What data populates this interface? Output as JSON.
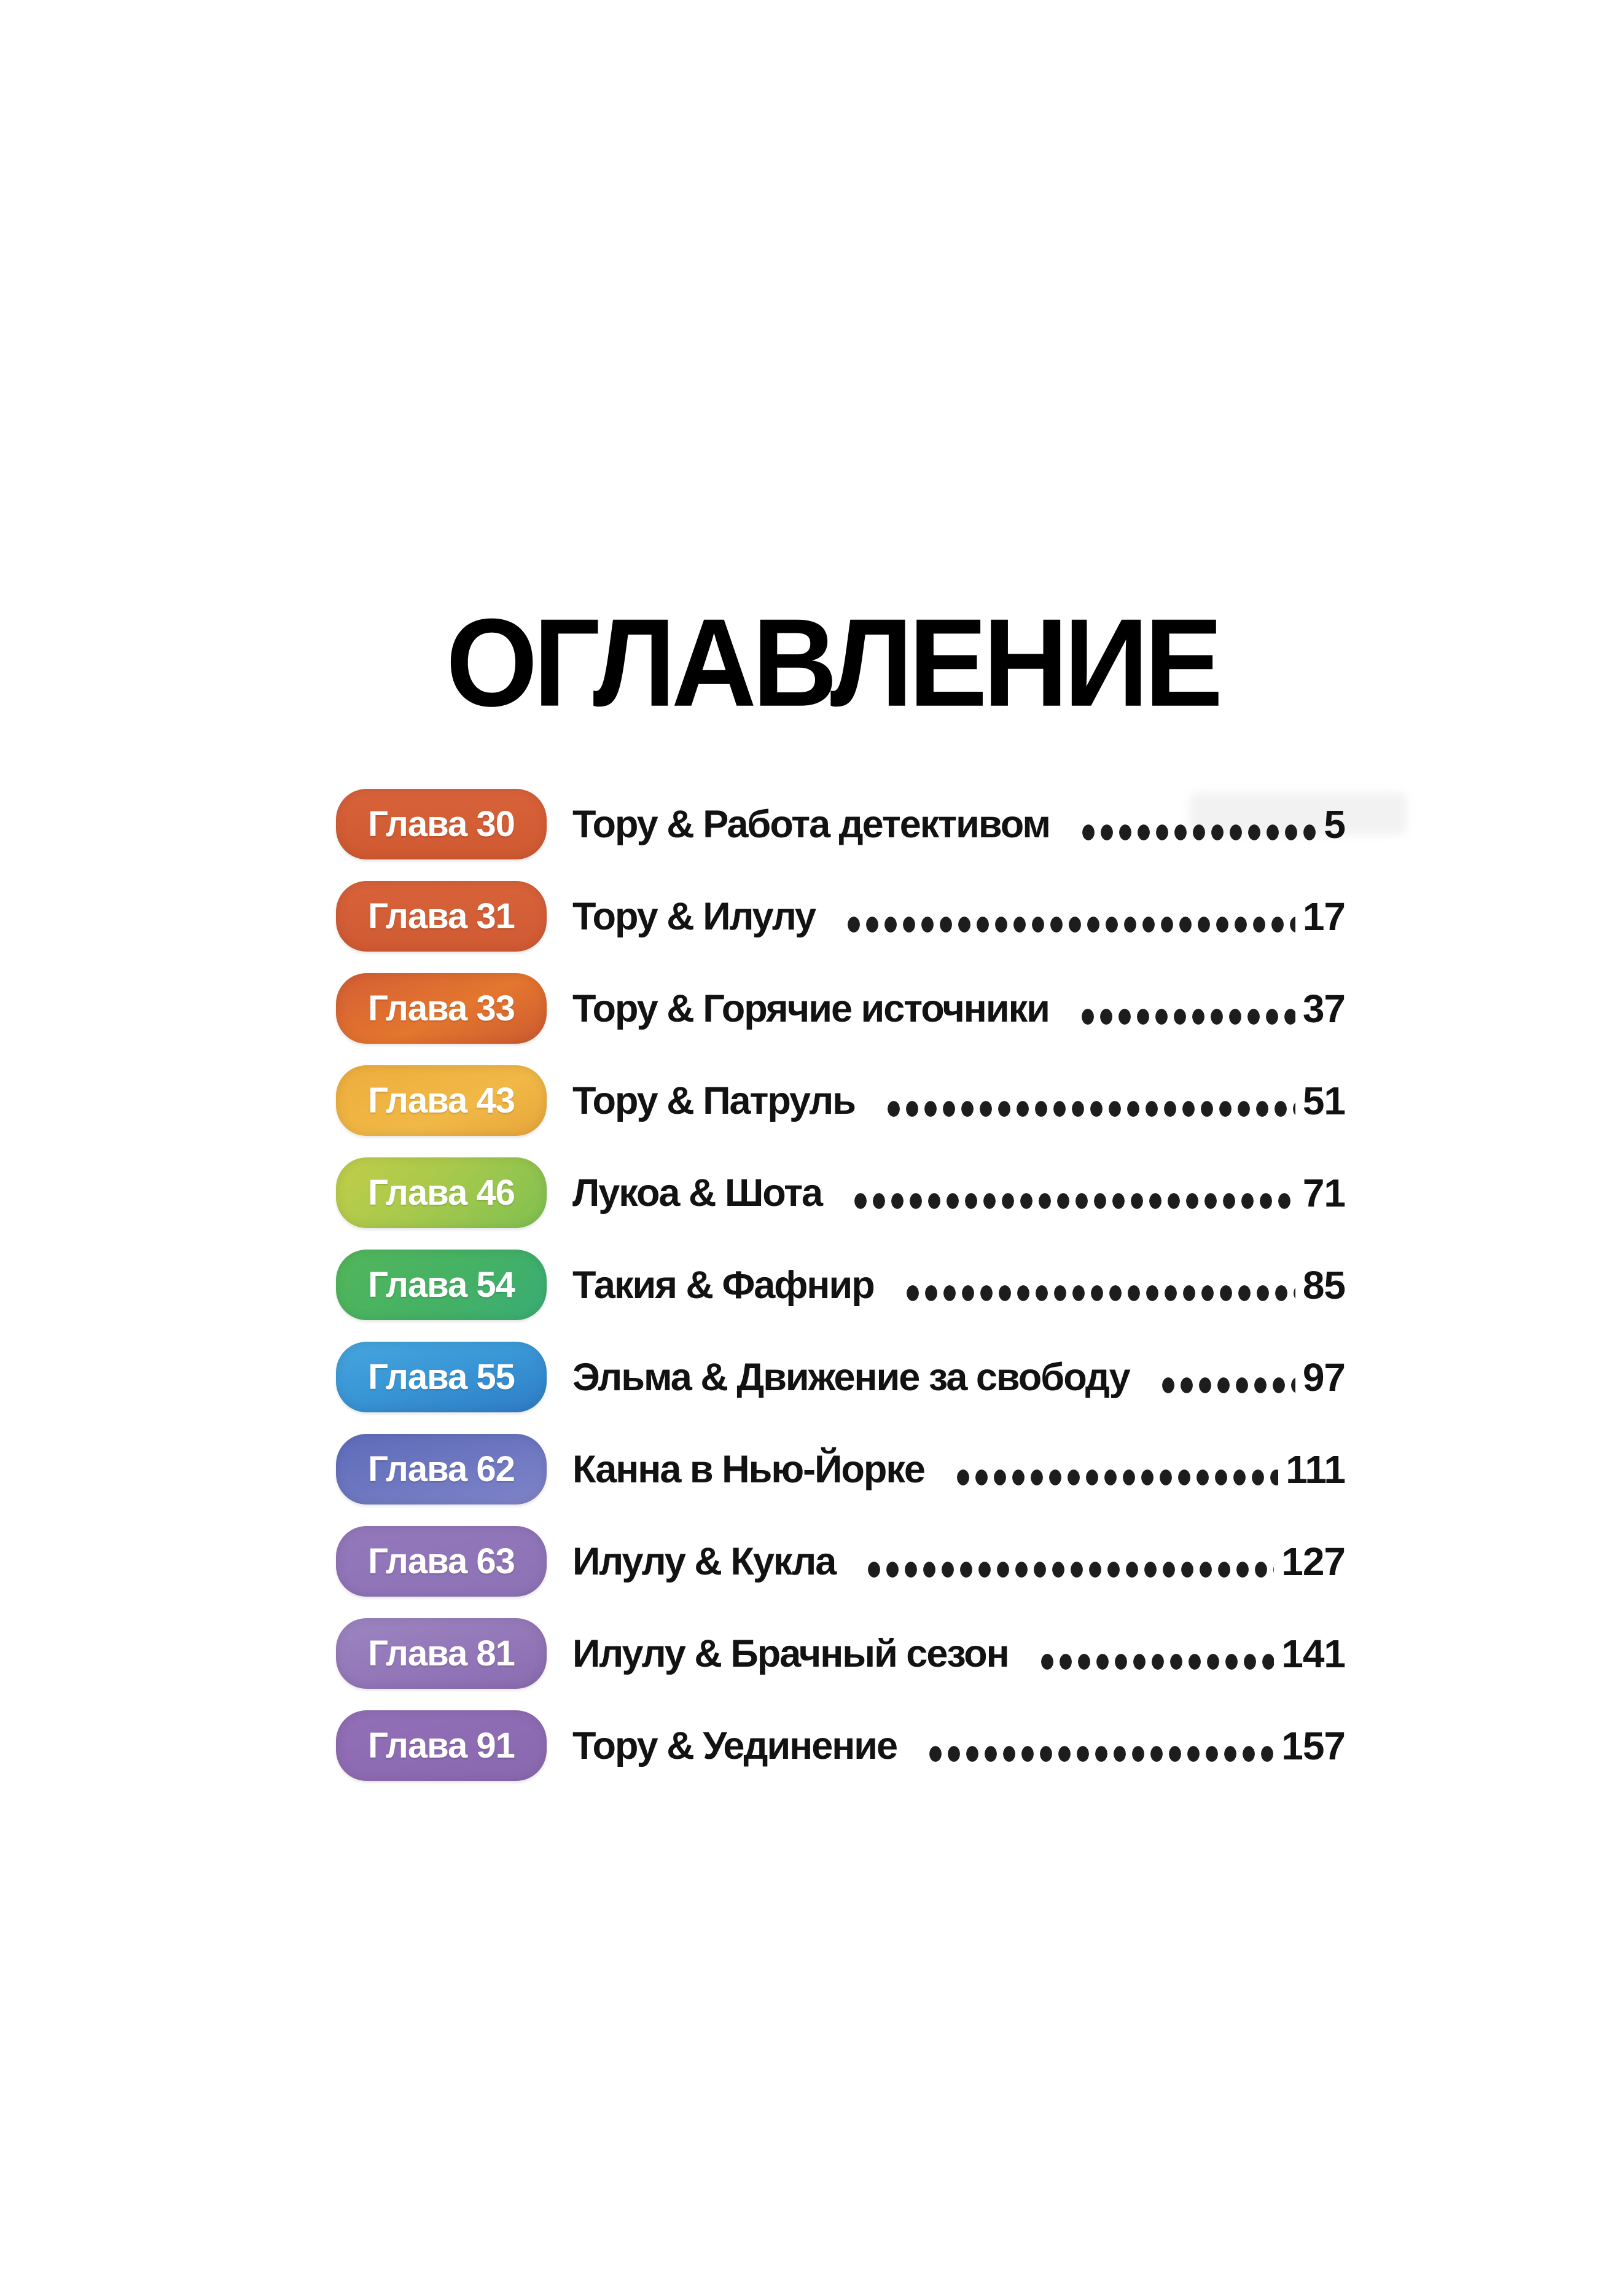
{
  "page": {
    "title": "ОГЛАВЛЕНИЕ",
    "background": "#ffffff",
    "text_color": "#121212"
  },
  "toc": {
    "entries": [
      {
        "chapter": "Глава 30",
        "title": "Тору & Работа детективом",
        "page": "5",
        "pill_style": "background:linear-gradient(180deg,#d8623a 0%,#cf5931 100%)"
      },
      {
        "chapter": "Глава 31",
        "title": "Тору & Илулу",
        "page": "17",
        "pill_style": "background:linear-gradient(180deg,#d8623a 0%,#d05a32 100%)"
      },
      {
        "chapter": "Глава 33",
        "title": "Тору & Горячие источники",
        "page": "37",
        "pill_style": "background:linear-gradient(155deg,#d45e34 0%,#e4762e 55%,#cd5a30 100%)"
      },
      {
        "chapter": "Глава 43",
        "title": "Тору & Патруль",
        "page": "51",
        "pill_style": "background:linear-gradient(155deg,#eeae3c 0%,#f0b846 60%,#e8a53b 100%)"
      },
      {
        "chapter": "Глава 46",
        "title": "Лукоа & Шота",
        "page": "71",
        "pill_style": "background:linear-gradient(135deg,#c2ce49 0%,#a8c94c 45%,#7fc050 100%)"
      },
      {
        "chapter": "Глава 54",
        "title": "Такия & Фафнир",
        "page": "85",
        "pill_style": "background:linear-gradient(135deg,#53b75b 0%,#44b164 55%,#3aad76 100%)"
      },
      {
        "chapter": "Глава 55",
        "title": "Эльма & Движение за свободу",
        "page": "97",
        "pill_style": "background:linear-gradient(165deg,#46a5de 0%,#3a97d6 45%,#2e7cc6 100%)"
      },
      {
        "chapter": "Глава 62",
        "title": "Канна в Нью-Йорке",
        "page": "111",
        "pill_style": "background:linear-gradient(165deg,#5e6cba 0%,#6d77c0 50%,#8184c8 100%)"
      },
      {
        "chapter": "Глава 63",
        "title": "Илулу & Кукла",
        "page": "127",
        "pill_style": "background:linear-gradient(165deg,#9378bb 0%,#8d72b6 100%)"
      },
      {
        "chapter": "Глава 81",
        "title": "Илулу & Брачный сезон",
        "page": "141",
        "pill_style": "background:linear-gradient(165deg,#9d85c1 0%,#8a6bb1 100%)"
      },
      {
        "chapter": "Глава 91",
        "title": "Тору & Уединение",
        "page": "157",
        "pill_style": "background:linear-gradient(165deg,#926fb6 0%,#8a68b0 100%)"
      }
    ]
  }
}
